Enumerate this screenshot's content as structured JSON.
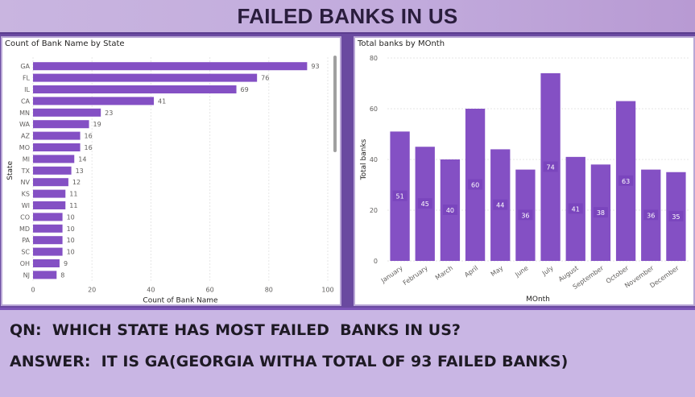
{
  "header": {
    "title": "FAILED BANKS IN US"
  },
  "colors": {
    "bar": "#8450c4",
    "panel_border": "#b9a7d6",
    "qa_background": "#c9b6e4"
  },
  "chart_data": [
    {
      "type": "bar",
      "orientation": "horizontal",
      "title": "Count of Bank Name by State",
      "xlabel": "Count of Bank Name",
      "ylabel": "State",
      "categories": [
        "GA",
        "FL",
        "IL",
        "CA",
        "MN",
        "WA",
        "AZ",
        "MO",
        "MI",
        "TX",
        "NV",
        "KS",
        "WI",
        "CO",
        "MD",
        "PA",
        "SC",
        "OH",
        "NJ"
      ],
      "values": [
        93,
        76,
        69,
        41,
        23,
        19,
        16,
        16,
        14,
        13,
        12,
        11,
        11,
        10,
        10,
        10,
        10,
        9,
        8
      ],
      "xlim": [
        0,
        100
      ],
      "xticks": [
        0,
        20,
        40,
        60,
        80,
        100
      ],
      "grid": true,
      "data_labels": true
    },
    {
      "type": "bar",
      "orientation": "vertical",
      "title": "Total banks by MOnth",
      "xlabel": "MOnth",
      "ylabel": "Total banks",
      "categories": [
        "January",
        "February",
        "March",
        "April",
        "May",
        "June",
        "July",
        "August",
        "September",
        "October",
        "November",
        "December"
      ],
      "values": [
        51,
        45,
        40,
        60,
        44,
        36,
        74,
        41,
        38,
        63,
        36,
        35
      ],
      "ylim": [
        0,
        80
      ],
      "yticks": [
        0,
        20,
        40,
        60,
        80
      ],
      "grid": true,
      "data_labels": true
    }
  ],
  "qa": {
    "question": "QN:  WHICH STATE HAS MOST FAILED  BANKS IN US?",
    "answer": "ANSWER:  IT IS GA(GEORGIA WITHA TOTAL OF 93 FAILED BANKS)"
  }
}
